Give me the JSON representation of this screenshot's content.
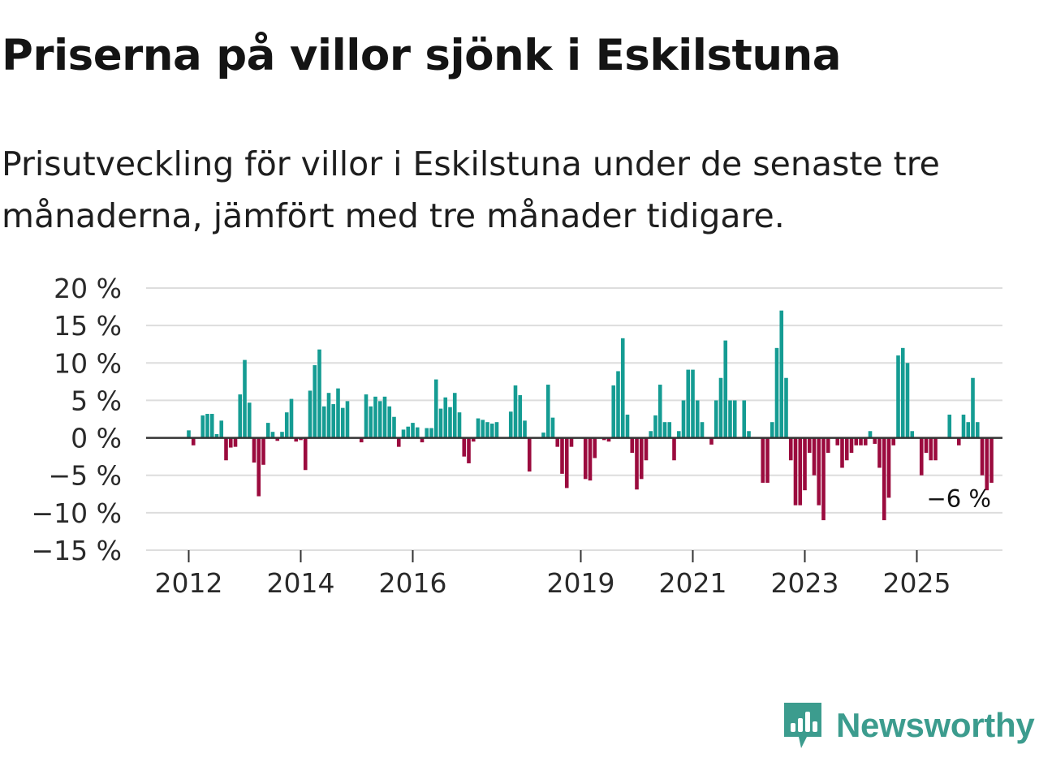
{
  "header": {
    "title": "Priserna på villor sjönk i Eskilstuna",
    "subtitle": "Prisutveckling för villor i Eskilstuna under de senaste tre månaderna, jämfört med tre månader tidigare."
  },
  "brand": {
    "name": "Newsworthy",
    "icon": "newsworthy-logo-icon",
    "color": "#3c9c8e"
  },
  "colors": {
    "positive": "#159c93",
    "negative": "#9b0b3e",
    "zero_line": "#333333",
    "grid": "#dddddd"
  },
  "chart_data": {
    "type": "bar",
    "title": "Priserna på villor sjönk i Eskilstuna",
    "subtitle": "Prisutveckling för villor i Eskilstuna under de senaste tre månaderna, jämfört med tre månader tidigare.",
    "xlabel": "",
    "ylabel": "",
    "unit": "%",
    "ylim": [
      -15,
      20
    ],
    "y_ticks": [
      20,
      15,
      10,
      5,
      0,
      -5,
      -10,
      -15
    ],
    "y_tick_labels": [
      "20 %",
      "15 %",
      "10 %",
      "5 %",
      "0 %",
      "−5 %",
      "−10 %",
      "−15 %"
    ],
    "x_range": [
      2011.25,
      2026.75
    ],
    "x_ticks": [
      2012,
      2014,
      2016,
      2019,
      2021,
      2023,
      2025
    ],
    "x_tick_labels": [
      "2012",
      "2014",
      "2016",
      "2019",
      "2021",
      "2023",
      "2025"
    ],
    "grid": true,
    "start_month": "2012-01",
    "frequency": "monthly",
    "values": [
      1,
      -1,
      0,
      3,
      3.2,
      3.2,
      0.5,
      2.3,
      -3,
      -1.3,
      -1.2,
      5.8,
      10.4,
      4.7,
      -3.3,
      -7.8,
      -3.6,
      2,
      0.8,
      -0.4,
      0.8,
      3.4,
      5.2,
      -0.5,
      -0.3,
      -4.3,
      6.3,
      9.7,
      11.8,
      4.2,
      6,
      4.5,
      6.6,
      4,
      4.9,
      0,
      0,
      -0.6,
      5.8,
      4.2,
      5.5,
      4.9,
      5.5,
      4.2,
      2.8,
      -1.2,
      1.1,
      1.5,
      2,
      1.4,
      -0.6,
      1.3,
      1.3,
      7.8,
      3.9,
      5.4,
      4.1,
      6,
      3.4,
      -2.5,
      -3.4,
      -0.5,
      2.6,
      2.4,
      2.1,
      1.9,
      2.1,
      0,
      0,
      3.5,
      7,
      5.7,
      2.3,
      -4.5,
      0,
      -0.1,
      0.7,
      7.1,
      2.7,
      -1.2,
      -4.8,
      -6.7,
      -1.2,
      0,
      0,
      -5.5,
      -5.7,
      -2.7,
      0,
      -0.3,
      -0.5,
      7,
      8.9,
      13.3,
      3.1,
      -2,
      -6.9,
      -5.5,
      -3,
      0.9,
      3,
      7.1,
      2.1,
      2.1,
      -3,
      0.9,
      5,
      9.1,
      9.1,
      5,
      2.1,
      0,
      -0.9,
      5,
      8,
      13,
      5,
      5,
      0,
      5,
      0.9,
      0,
      0,
      -6,
      -6,
      2.1,
      12,
      17,
      8,
      -3,
      -9,
      -9,
      -7,
      -2,
      -5,
      -9,
      -11,
      -2,
      0,
      -1,
      -4,
      -3,
      -2,
      -1,
      -1,
      -1,
      0.9,
      -0.8,
      -4,
      -11,
      -8,
      -1,
      11,
      12,
      10,
      0.9,
      0,
      -5,
      -2,
      -3,
      -3,
      0,
      0,
      3.1,
      0,
      -1,
      3.1,
      2.1,
      8,
      2.1,
      -5,
      -7,
      -6
    ],
    "annotation": {
      "label": "−6 %",
      "value": -6
    }
  }
}
